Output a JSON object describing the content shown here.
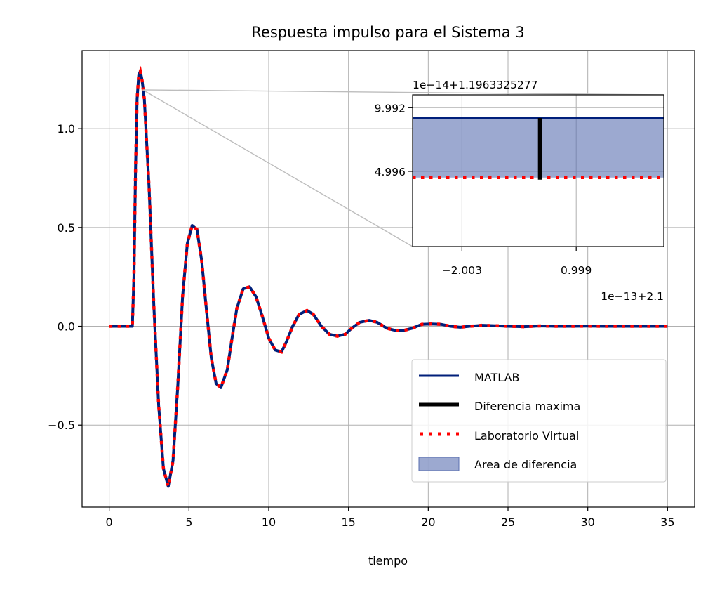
{
  "chart_data": {
    "type": "line",
    "title": "Respuesta impulso para el Sistema 3",
    "xlabel": "tiempo",
    "ylabel": "",
    "xlim": [
      -1.7,
      36.7
    ],
    "ylim": [
      -0.915,
      1.395
    ],
    "xticks": [
      0,
      5,
      10,
      15,
      20,
      25,
      30,
      35
    ],
    "yticks": [
      -0.5,
      0.0,
      0.5,
      1.0
    ],
    "ytick_labels": [
      "−0.5",
      "0.0",
      "0.5",
      "1.0"
    ],
    "grid": true,
    "legend_position": "lower-right",
    "series": [
      {
        "name": "MATLAB",
        "color": "#001f7a",
        "style": "solid",
        "x": [
          0,
          0.4,
          0.8,
          1.2,
          1.45,
          1.55,
          1.65,
          1.75,
          1.85,
          1.95,
          2.05,
          2.2,
          2.5,
          2.8,
          3.1,
          3.4,
          3.7,
          4.0,
          4.3,
          4.6,
          4.9,
          5.2,
          5.5,
          5.8,
          6.1,
          6.4,
          6.7,
          7.0,
          7.4,
          7.7,
          8.0,
          8.4,
          8.8,
          9.2,
          9.6,
          10.0,
          10.4,
          10.8,
          11.1,
          11.5,
          11.9,
          12.4,
          12.8,
          13.3,
          13.8,
          14.3,
          14.8,
          15.2,
          15.7,
          16.3,
          16.8,
          17.4,
          17.9,
          18.5,
          19.0,
          19.6,
          20.2,
          20.8,
          21.4,
          22.0,
          22.6,
          23.4,
          24.2,
          25.0,
          26.0,
          27.0,
          28.0,
          29.0,
          30.0,
          31.0,
          32.0,
          33.0,
          34.0,
          35.0
        ],
        "y": [
          0.0,
          0.0,
          0.0,
          0.0,
          0.0,
          0.25,
          0.8,
          1.15,
          1.27,
          1.29,
          1.25,
          1.15,
          0.7,
          0.1,
          -0.4,
          -0.72,
          -0.81,
          -0.68,
          -0.3,
          0.15,
          0.42,
          0.51,
          0.49,
          0.33,
          0.08,
          -0.16,
          -0.29,
          -0.31,
          -0.22,
          -0.06,
          0.09,
          0.19,
          0.2,
          0.15,
          0.05,
          -0.06,
          -0.12,
          -0.13,
          -0.08,
          0.0,
          0.06,
          0.08,
          0.06,
          0.0,
          -0.04,
          -0.05,
          -0.04,
          -0.01,
          0.02,
          0.03,
          0.02,
          -0.01,
          -0.02,
          -0.02,
          -0.01,
          0.01,
          0.012,
          0.01,
          0.0,
          -0.005,
          0.0,
          0.005,
          0.003,
          0.0,
          -0.002,
          0.002,
          0.0,
          0.0,
          0.001,
          0.0,
          0.0,
          0.0,
          0.0,
          0.0
        ]
      },
      {
        "name": "Laboratorio Virtual",
        "color": "#ff0000",
        "style": "dotted",
        "same_as": "MATLAB"
      },
      {
        "name": "Diferencia maxima",
        "color": "#000000",
        "style": "solid"
      }
    ],
    "fill": {
      "name": "Area de diferencia",
      "color": "#5a6fb0"
    },
    "inset": {
      "offset_y_label": "1e−14+1.1963325277",
      "offset_x_label": "1e−13+2.1",
      "yticks": [
        9.992,
        4.996
      ],
      "ytick_labels": [
        "9.992",
        "4.996"
      ],
      "ylim": [
        -0.9,
        11.0
      ],
      "xticks": [
        -2.003,
        0.999
      ],
      "xtick_labels": [
        "−2.003",
        "0.999"
      ],
      "xlim": [
        -3.3,
        3.3
      ],
      "matlab_y": 9.18,
      "virtual_y": 4.51,
      "diff_x": 0.05,
      "zoom_source": {
        "x": 2.1,
        "y": 1.1963325277
      }
    }
  }
}
